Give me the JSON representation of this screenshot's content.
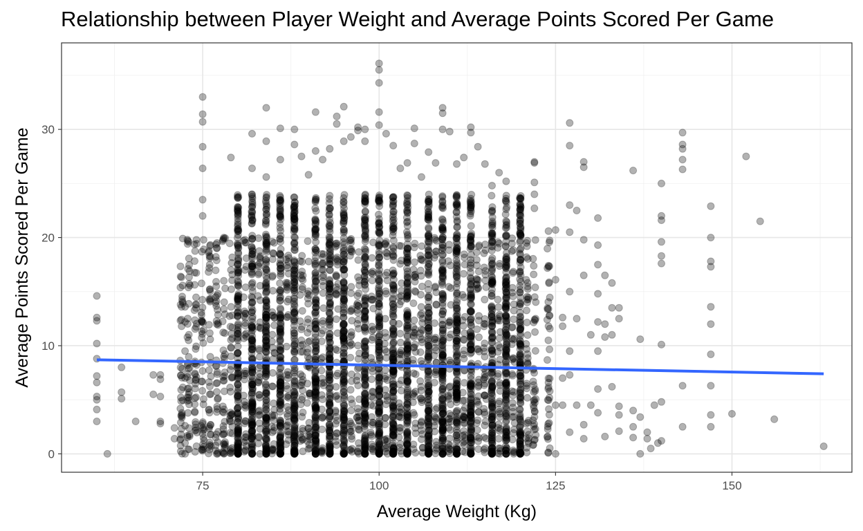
{
  "chart_data": {
    "type": "scatter",
    "title": "Relationship between Player Weight and Average Points Scored Per Game",
    "xlabel": "Average Weight (Kg)",
    "ylabel": "Average Points Scored Per Game",
    "xlim": [
      55,
      167
    ],
    "ylim": [
      -1.7,
      38
    ],
    "x_ticks": [
      75,
      100,
      125,
      150
    ],
    "y_ticks": [
      0,
      10,
      20,
      30
    ],
    "x_tick_labels": [
      "75",
      "100",
      "125",
      "150"
    ],
    "y_tick_labels": [
      "0",
      "10",
      "20",
      "30"
    ],
    "grid": true,
    "theme": "bw",
    "point_color": "#000000",
    "point_alpha": 0.3,
    "trend_line": {
      "method": "linear",
      "color": "#3366FF",
      "x": [
        60,
        163
      ],
      "y": [
        8.7,
        7.4
      ]
    },
    "weight_columns": [
      60,
      61,
      63,
      65,
      68,
      69,
      71,
      72,
      73,
      74,
      75,
      76,
      77,
      78,
      79,
      80,
      81,
      82,
      83,
      84,
      85,
      86,
      87,
      88,
      89,
      90,
      91,
      92,
      93,
      94,
      95,
      96,
      97,
      98,
      99,
      100,
      101,
      102,
      103,
      104,
      105,
      106,
      107,
      108,
      109,
      110,
      111,
      112,
      113,
      114,
      115,
      116,
      117,
      118,
      119,
      120,
      121,
      122,
      124,
      125,
      126,
      127,
      128,
      129,
      130,
      131,
      132,
      133,
      134,
      136,
      137,
      138,
      139,
      140,
      141,
      143,
      147,
      150,
      152,
      154,
      156,
      163
    ],
    "series": [
      {
        "points": [
          [
            60,
            14.6
          ],
          [
            60,
            12.6
          ],
          [
            60,
            12.3
          ],
          [
            60,
            10.2
          ],
          [
            60,
            8.8
          ],
          [
            60,
            7.2
          ],
          [
            60,
            6.6
          ],
          [
            60,
            5.3
          ],
          [
            60,
            5.0
          ],
          [
            60,
            4.1
          ],
          [
            60,
            3.0
          ],
          [
            61.5,
            0.0
          ],
          [
            63.5,
            8.0
          ],
          [
            63.5,
            5.7
          ],
          [
            63.5,
            5.1
          ],
          [
            65.5,
            3.0
          ],
          [
            68,
            7.3
          ],
          [
            68,
            5.5
          ],
          [
            69,
            7.3
          ],
          [
            69,
            6.9
          ],
          [
            69,
            5.3
          ],
          [
            69,
            3.0
          ],
          [
            69,
            2.8
          ],
          [
            71,
            2.4
          ],
          [
            71,
            1.4
          ],
          [
            72.5,
            13.6
          ],
          [
            72.5,
            12.2
          ],
          [
            72.5,
            9.5
          ],
          [
            72.5,
            7.0
          ],
          [
            72.5,
            2.6
          ],
          [
            72.5,
            1.0
          ],
          [
            72.5,
            0.0
          ],
          [
            73,
            19.6
          ],
          [
            73,
            10.5
          ],
          [
            73,
            5.2
          ],
          [
            74,
            13.8
          ],
          [
            74,
            9.7
          ],
          [
            74,
            6.8
          ],
          [
            75,
            33.0
          ],
          [
            75,
            31.4
          ],
          [
            75,
            30.7
          ],
          [
            75,
            28.4
          ],
          [
            75,
            26.4
          ],
          [
            75,
            23.5
          ],
          [
            75,
            22.0
          ],
          [
            76,
            17.5
          ],
          [
            76,
            14.2
          ],
          [
            76,
            5.5
          ],
          [
            77,
            19.0
          ],
          [
            77,
            12.0
          ],
          [
            77,
            0.0
          ],
          [
            78,
            20.0
          ],
          [
            78,
            16.0
          ],
          [
            78,
            9.0
          ],
          [
            78,
            0.0
          ],
          [
            79,
            27.4
          ],
          [
            79,
            17.0
          ],
          [
            79,
            3.0
          ],
          [
            80,
            22.8
          ],
          [
            80,
            22.0
          ],
          [
            81,
            17.0
          ],
          [
            81,
            11.0
          ],
          [
            82,
            29.6
          ],
          [
            82,
            26.4
          ],
          [
            82,
            24.0
          ],
          [
            84,
            32.0
          ],
          [
            84,
            28.9
          ],
          [
            84,
            25.6
          ],
          [
            86,
            30.1
          ],
          [
            86,
            27.2
          ],
          [
            88,
            30.0
          ],
          [
            88,
            28.6
          ],
          [
            89,
            27.5
          ],
          [
            90,
            25.8
          ],
          [
            91,
            31.6
          ],
          [
            91,
            28.0
          ],
          [
            92,
            27.2
          ],
          [
            93,
            28.2
          ],
          [
            94,
            31.2
          ],
          [
            94,
            30.5
          ],
          [
            95,
            32.1
          ],
          [
            95,
            28.9
          ],
          [
            96,
            29.3
          ],
          [
            97,
            30.2
          ],
          [
            97,
            29.9
          ],
          [
            98,
            28.9
          ],
          [
            98,
            30.0
          ],
          [
            100,
            36.1
          ],
          [
            100,
            35.5
          ],
          [
            100,
            34.3
          ],
          [
            100,
            31.6
          ],
          [
            100,
            30.4
          ],
          [
            101,
            29.6
          ],
          [
            102,
            28.5
          ],
          [
            103,
            26.4
          ],
          [
            104,
            26.9
          ],
          [
            105,
            30.1
          ],
          [
            105,
            28.7
          ],
          [
            106,
            25.6
          ],
          [
            107,
            27.9
          ],
          [
            108,
            26.9
          ],
          [
            109,
            32.0
          ],
          [
            109,
            31.5
          ],
          [
            109,
            30.0
          ],
          [
            110,
            29.8
          ],
          [
            111,
            26.8
          ],
          [
            112,
            27.4
          ],
          [
            113,
            30.2
          ],
          [
            113,
            29.7
          ],
          [
            114,
            28.4
          ],
          [
            115,
            26.8
          ],
          [
            116,
            24.8
          ],
          [
            117,
            26.0
          ],
          [
            118,
            25.2
          ],
          [
            120,
            23.0
          ],
          [
            122,
            27.0
          ],
          [
            122,
            26.9
          ],
          [
            122,
            25.1
          ],
          [
            122,
            24.0
          ],
          [
            122,
            22.7
          ],
          [
            124,
            13.4
          ],
          [
            124,
            11.8
          ],
          [
            124,
            20.6
          ],
          [
            124,
            17.4
          ],
          [
            125,
            20.7
          ],
          [
            125,
            16.1
          ],
          [
            125,
            4.5
          ],
          [
            125,
            0.0
          ],
          [
            126,
            12.6
          ],
          [
            126,
            11.8
          ],
          [
            126,
            7.0
          ],
          [
            126,
            4.5
          ],
          [
            127,
            30.6
          ],
          [
            127,
            28.5
          ],
          [
            127,
            23.0
          ],
          [
            127,
            20.5
          ],
          [
            127,
            15.0
          ],
          [
            127,
            9.5
          ],
          [
            127,
            7.3
          ],
          [
            127,
            2.0
          ],
          [
            128,
            22.5
          ],
          [
            128,
            12.5
          ],
          [
            128,
            4.5
          ],
          [
            129,
            27.0
          ],
          [
            129,
            26.5
          ],
          [
            129,
            19.8
          ],
          [
            129,
            16.5
          ],
          [
            129,
            2.7
          ],
          [
            129,
            1.4
          ],
          [
            130,
            11.0
          ],
          [
            130,
            4.5
          ],
          [
            131,
            21.8
          ],
          [
            131,
            19.3
          ],
          [
            131,
            17.5
          ],
          [
            131,
            14.8
          ],
          [
            131,
            12.2
          ],
          [
            131,
            9.5
          ],
          [
            131,
            6.0
          ],
          [
            131,
            3.8
          ],
          [
            132,
            16.5
          ],
          [
            132,
            12.0
          ],
          [
            132,
            10.8
          ],
          [
            132,
            1.6
          ],
          [
            133,
            15.8
          ],
          [
            133,
            13.5
          ],
          [
            133,
            11.0
          ],
          [
            133,
            6.2
          ],
          [
            134,
            13.5
          ],
          [
            134,
            12.5
          ],
          [
            134,
            4.4
          ],
          [
            134,
            3.6
          ],
          [
            134,
            2.1
          ],
          [
            136,
            26.2
          ],
          [
            136,
            4.0
          ],
          [
            136,
            2.5
          ],
          [
            136,
            1.5
          ],
          [
            137,
            10.6
          ],
          [
            137,
            3.4
          ],
          [
            137,
            0.0
          ],
          [
            138,
            2.0
          ],
          [
            138,
            1.4
          ],
          [
            138.5,
            0.5
          ],
          [
            139,
            4.5
          ],
          [
            139.5,
            1.0
          ],
          [
            140,
            25.0
          ],
          [
            140,
            22.0
          ],
          [
            140,
            21.6
          ],
          [
            140,
            19.6
          ],
          [
            140,
            18.3
          ],
          [
            140,
            17.6
          ],
          [
            140,
            10.1
          ],
          [
            140,
            4.8
          ],
          [
            140,
            1.2
          ],
          [
            143,
            29.7
          ],
          [
            143,
            28.6
          ],
          [
            143,
            28.2
          ],
          [
            143,
            27.2
          ],
          [
            143,
            26.3
          ],
          [
            143,
            6.3
          ],
          [
            143,
            2.5
          ],
          [
            147,
            22.9
          ],
          [
            147,
            20.0
          ],
          [
            147,
            17.8
          ],
          [
            147,
            17.3
          ],
          [
            147,
            13.6
          ],
          [
            147,
            12.0
          ],
          [
            147,
            9.2
          ],
          [
            147,
            6.3
          ],
          [
            147,
            3.6
          ],
          [
            147,
            2.5
          ],
          [
            150,
            3.7
          ],
          [
            152,
            27.5
          ],
          [
            154,
            21.5
          ],
          [
            156,
            3.2
          ],
          [
            163,
            0.7
          ]
        ]
      }
    ]
  }
}
